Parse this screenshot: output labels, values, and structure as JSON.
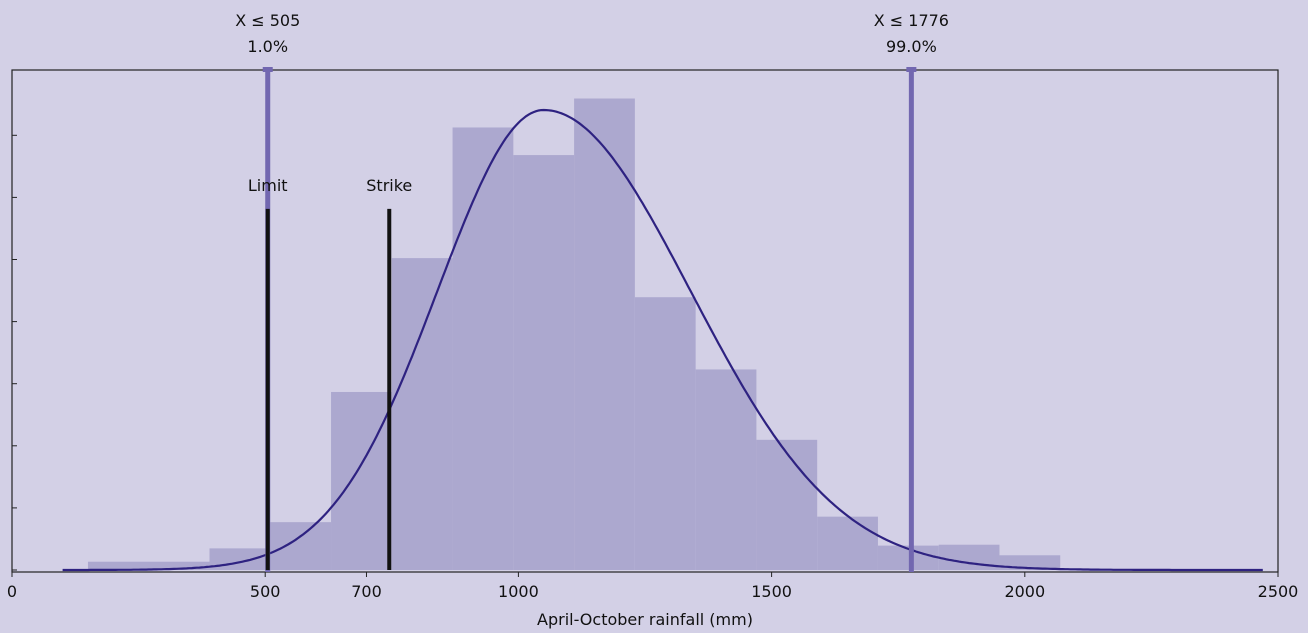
{
  "chart_data": {
    "type": "bar",
    "title": "",
    "xlabel": "April-October rainfall (mm)",
    "ylabel": "",
    "xlim": [
      0,
      2500
    ],
    "ylim": [
      0,
      1
    ],
    "x_ticks": [
      {
        "value": 0,
        "label": "0"
      },
      {
        "value": 500,
        "label": "500"
      },
      {
        "value": 700,
        "label": "700"
      },
      {
        "value": 1000,
        "label": "1000"
      },
      {
        "value": 1500,
        "label": "1500"
      },
      {
        "value": 2000,
        "label": "2000"
      },
      {
        "value": 2500,
        "label": "2500"
      }
    ],
    "y_tick_values": [
      0.0,
      0.135,
      0.27,
      0.405,
      0.54,
      0.675,
      0.81,
      0.945
    ],
    "histogram_bins": [
      {
        "x0": 150,
        "x1": 390,
        "height": 0.018
      },
      {
        "x0": 390,
        "x1": 510,
        "height": 0.047
      },
      {
        "x0": 510,
        "x1": 630,
        "height": 0.104
      },
      {
        "x0": 630,
        "x1": 750,
        "height": 0.387
      },
      {
        "x0": 750,
        "x1": 870,
        "height": 0.678
      },
      {
        "x0": 870,
        "x1": 990,
        "height": 0.962
      },
      {
        "x0": 990,
        "x1": 1110,
        "height": 0.902
      },
      {
        "x0": 1110,
        "x1": 1230,
        "height": 1.025
      },
      {
        "x0": 1230,
        "x1": 1350,
        "height": 0.593
      },
      {
        "x0": 1350,
        "x1": 1470,
        "height": 0.436
      },
      {
        "x0": 1470,
        "x1": 1590,
        "height": 0.283
      },
      {
        "x0": 1590,
        "x1": 1710,
        "height": 0.116
      },
      {
        "x0": 1710,
        "x1": 1830,
        "height": 0.053
      },
      {
        "x0": 1830,
        "x1": 1950,
        "height": 0.055
      },
      {
        "x0": 1950,
        "x1": 2070,
        "height": 0.032
      }
    ],
    "fit_curve": {
      "peak_x": 1050,
      "peak_height": 1.0,
      "sigma_left": 210,
      "sigma_right": 290,
      "x_start": 100,
      "x_end": 2470
    },
    "markers": [
      {
        "x": 505,
        "line1": "X ≤ 505",
        "line2": "1.0%"
      },
      {
        "x": 1776,
        "line1": "X ≤ 1776",
        "line2": "99.0%"
      }
    ],
    "vertical_lines": [
      {
        "x": 505,
        "height": 0.785,
        "label": "Limit"
      },
      {
        "x": 745,
        "height": 0.785,
        "label": "Strike"
      }
    ],
    "grid": false,
    "legend": "none"
  },
  "colors": {
    "background": "#d3d0e6",
    "bar_fill": "#aca8cf",
    "curve": "#2e2281",
    "marker_line": "#7267b0",
    "strike_line": "#111111",
    "axis": "#222222"
  }
}
